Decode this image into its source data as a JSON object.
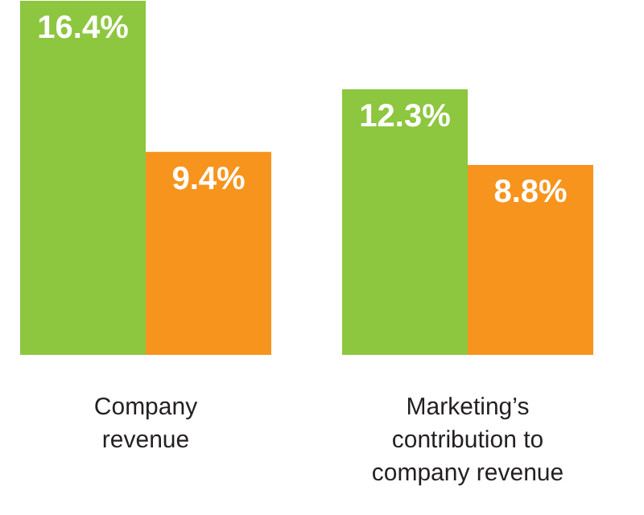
{
  "chart_data": {
    "type": "bar",
    "categories": [
      "Company\nrevenue",
      "Marketing’s\ncontribution to\ncompany revenue"
    ],
    "series": [
      {
        "color": "#8dc63f",
        "values": [
          16.4,
          12.3
        ],
        "value_labels": [
          "16.4%",
          "12.3%"
        ]
      },
      {
        "color": "#f7941d",
        "values": [
          9.4,
          8.8
        ],
        "value_labels": [
          "9.4%",
          "8.8%"
        ]
      }
    ],
    "grid": false
  }
}
